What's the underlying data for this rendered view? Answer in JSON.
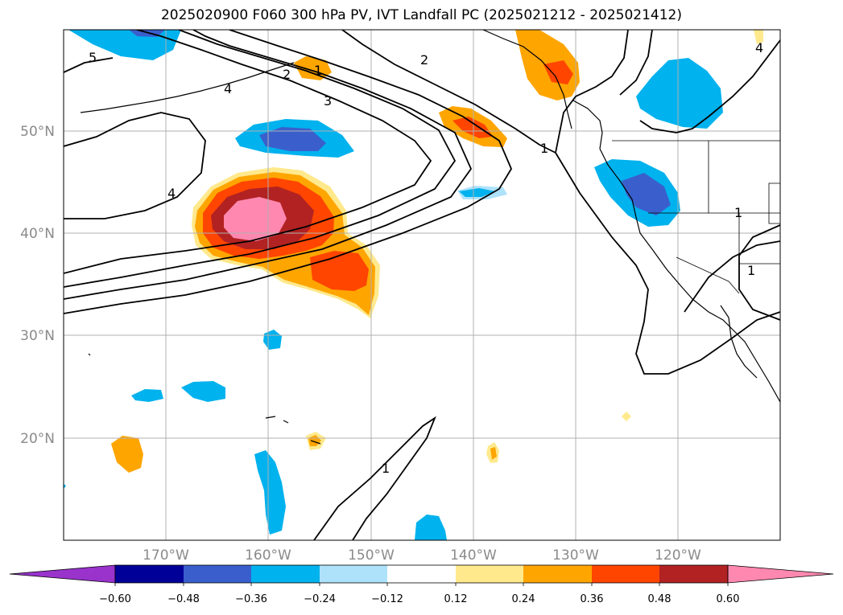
{
  "title": "2025020900 F060 300 hPa PV, IVT Landfall PC (2025021212 - 2025021412)",
  "map": {
    "lat_labels": [
      "50°N",
      "40°N",
      "30°N",
      "20°N"
    ],
    "lon_labels": [
      "170°W",
      "160°W",
      "150°W",
      "140°W",
      "130°W",
      "120°W"
    ],
    "contour_labels": [
      "5",
      "4",
      "4",
      "3",
      "2",
      "2",
      "1",
      "1",
      "1",
      "1",
      "1",
      "4"
    ],
    "gridline_color": "#b0b0b0"
  },
  "colorbar": {
    "ticks": [
      "−0.60",
      "−0.48",
      "−0.36",
      "−0.24",
      "−0.12",
      "0.12",
      "0.24",
      "0.36",
      "0.48",
      "0.60"
    ],
    "colors": [
      "#9933cc",
      "#000099",
      "#3a5fcd",
      "#00b2ee",
      "#aee2fb",
      "#ffffff",
      "#ffe98c",
      "#ffa500",
      "#ff4500",
      "#b22222",
      "#ff88b0"
    ]
  }
}
